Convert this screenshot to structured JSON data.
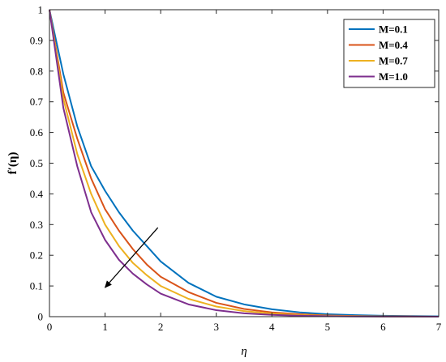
{
  "chart_data": {
    "type": "line",
    "xlabel": "η",
    "ylabel": "f′(η)",
    "xlim": [
      0,
      7
    ],
    "ylim": [
      0,
      1
    ],
    "xticks": [
      0,
      1,
      2,
      3,
      4,
      5,
      6,
      7
    ],
    "yticks": [
      0,
      0.1,
      0.2,
      0.3,
      0.4,
      0.5,
      0.6,
      0.7,
      0.8,
      0.9,
      1
    ],
    "grid": false,
    "legend_position": "top-right",
    "x": [
      0,
      0.25,
      0.5,
      0.75,
      1,
      1.25,
      1.5,
      1.75,
      2,
      2.5,
      3,
      3.5,
      4,
      4.5,
      5,
      5.5,
      6,
      6.5,
      7
    ],
    "series": [
      {
        "name": "M=0.1",
        "color": "#0072BD",
        "values": [
          1.0,
          0.79,
          0.62,
          0.49,
          0.41,
          0.34,
          0.28,
          0.23,
          0.18,
          0.11,
          0.065,
          0.04,
          0.024,
          0.014,
          0.008,
          0.005,
          0.003,
          0.002,
          0.001
        ]
      },
      {
        "name": "M=0.4",
        "color": "#D95319",
        "values": [
          1.0,
          0.73,
          0.58,
          0.45,
          0.35,
          0.28,
          0.22,
          0.17,
          0.13,
          0.08,
          0.045,
          0.025,
          0.014,
          0.008,
          0.004,
          0.002,
          0.001,
          0.0005,
          0.0
        ]
      },
      {
        "name": "M=0.7",
        "color": "#EDB120",
        "values": [
          1.0,
          0.71,
          0.53,
          0.4,
          0.3,
          0.23,
          0.175,
          0.135,
          0.1,
          0.058,
          0.033,
          0.018,
          0.01,
          0.005,
          0.003,
          0.0015,
          0.0008,
          0.0004,
          0.0
        ]
      },
      {
        "name": "M=1.0",
        "color": "#7E2F8E",
        "values": [
          1.0,
          0.68,
          0.49,
          0.34,
          0.25,
          0.185,
          0.14,
          0.105,
          0.075,
          0.04,
          0.021,
          0.011,
          0.006,
          0.003,
          0.0015,
          0.0008,
          0.0004,
          0.0002,
          0.0
        ]
      }
    ],
    "annotations": [
      {
        "type": "arrow",
        "from": [
          1.95,
          0.29
        ],
        "to": [
          1.0,
          0.095
        ],
        "meaning": "increasing M"
      }
    ]
  }
}
